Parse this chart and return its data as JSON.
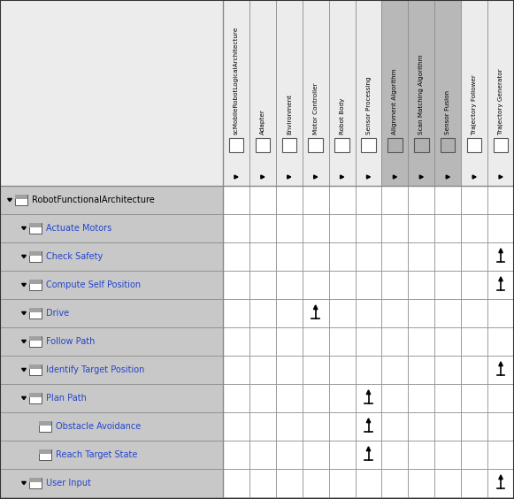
{
  "col_headers": [
    "scMobileRobotLogicalArchitecture",
    "Adapter",
    "Environment",
    "Motor Controller",
    "Robot Body",
    "Sensor Processing",
    "Alignment Algorithm",
    "Scan Matching Algorithm",
    "Sensor Fusion",
    "Trajectory Follower",
    "Trajectory Generator"
  ],
  "row_headers": [
    {
      "label": "RobotFunctionalArchitecture",
      "level": 0,
      "has_triangle": true,
      "has_box": true
    },
    {
      "label": "Actuate Motors",
      "level": 1,
      "has_triangle": true,
      "has_box": true
    },
    {
      "label": "Check Safety",
      "level": 1,
      "has_triangle": true,
      "has_box": true
    },
    {
      "label": "Compute Self Position",
      "level": 1,
      "has_triangle": true,
      "has_box": true
    },
    {
      "label": "Drive",
      "level": 1,
      "has_triangle": true,
      "has_box": true
    },
    {
      "label": "Follow Path",
      "level": 1,
      "has_triangle": true,
      "has_box": true
    },
    {
      "label": "Identify Target Position",
      "level": 1,
      "has_triangle": true,
      "has_box": true
    },
    {
      "label": "Plan Path",
      "level": 1,
      "has_triangle": true,
      "has_box": true
    },
    {
      "label": "Obstacle Avoidance",
      "level": 2,
      "has_triangle": false,
      "has_box": true
    },
    {
      "label": "Reach Target State",
      "level": 2,
      "has_triangle": false,
      "has_box": true
    },
    {
      "label": "User Input",
      "level": 1,
      "has_triangle": true,
      "has_box": true
    }
  ],
  "allocations": [
    {
      "row": 2,
      "col": 10
    },
    {
      "row": 3,
      "col": 10
    },
    {
      "row": 4,
      "col": 3
    },
    {
      "row": 6,
      "col": 10
    },
    {
      "row": 7,
      "col": 5
    },
    {
      "row": 8,
      "col": 5
    },
    {
      "row": 9,
      "col": 5
    },
    {
      "row": 10,
      "col": 10
    }
  ],
  "col_header_darker": [
    false,
    false,
    false,
    false,
    false,
    false,
    true,
    true,
    true,
    false,
    false
  ],
  "bg_color": "#c8c8c8",
  "cell_bg_color": "#ffffff",
  "header_bg_color": "#ececec",
  "darker_col_bg": "#b8b8b8",
  "border_color": "#888888",
  "row_label_color": "#2244cc",
  "text_color": "#000000",
  "fig_width": 5.81,
  "fig_height": 5.64,
  "dpi": 100
}
